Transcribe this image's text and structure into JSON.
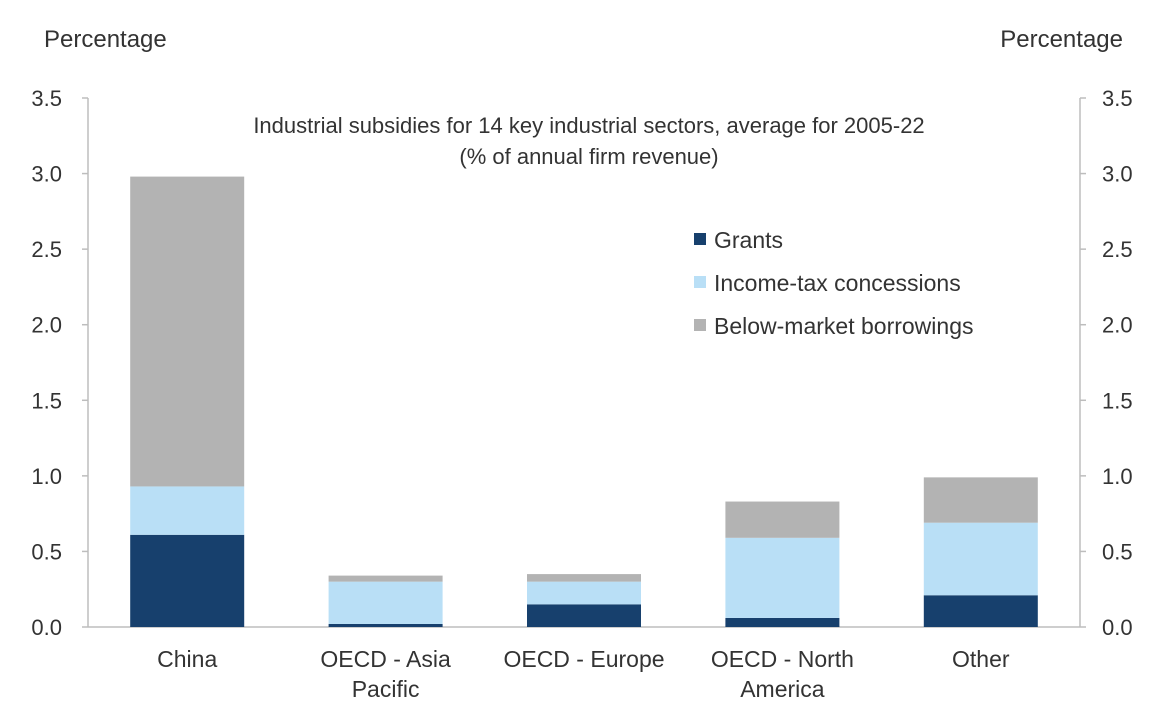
{
  "chart_data": {
    "type": "bar",
    "stacked": true,
    "title": "Industrial subsidies for 14 key industrial sectors, average for 2005-22",
    "subtitle": "(% of annual firm revenue)",
    "ylabel_left": "Percentage",
    "ylabel_right": "Percentage",
    "ylim": [
      0,
      3.5
    ],
    "yticks": [
      "0.0",
      "0.5",
      "1.0",
      "1.5",
      "2.0",
      "2.5",
      "3.0",
      "3.5"
    ],
    "categories": [
      [
        "China"
      ],
      [
        "OECD - Asia",
        "Pacific"
      ],
      [
        "OECD - Europe"
      ],
      [
        "OECD - North",
        "America"
      ],
      [
        "Other"
      ]
    ],
    "series": [
      {
        "name": "Grants",
        "color": "#17406d",
        "values": [
          0.61,
          0.02,
          0.15,
          0.06,
          0.21
        ]
      },
      {
        "name": "Income-tax concessions",
        "color": "#b9dff6",
        "values": [
          0.32,
          0.28,
          0.15,
          0.53,
          0.48
        ]
      },
      {
        "name": "Below-market borrowings",
        "color": "#b3b3b3",
        "values": [
          2.05,
          0.04,
          0.05,
          0.24,
          0.3
        ]
      }
    ],
    "legend_position": "upper-right"
  }
}
